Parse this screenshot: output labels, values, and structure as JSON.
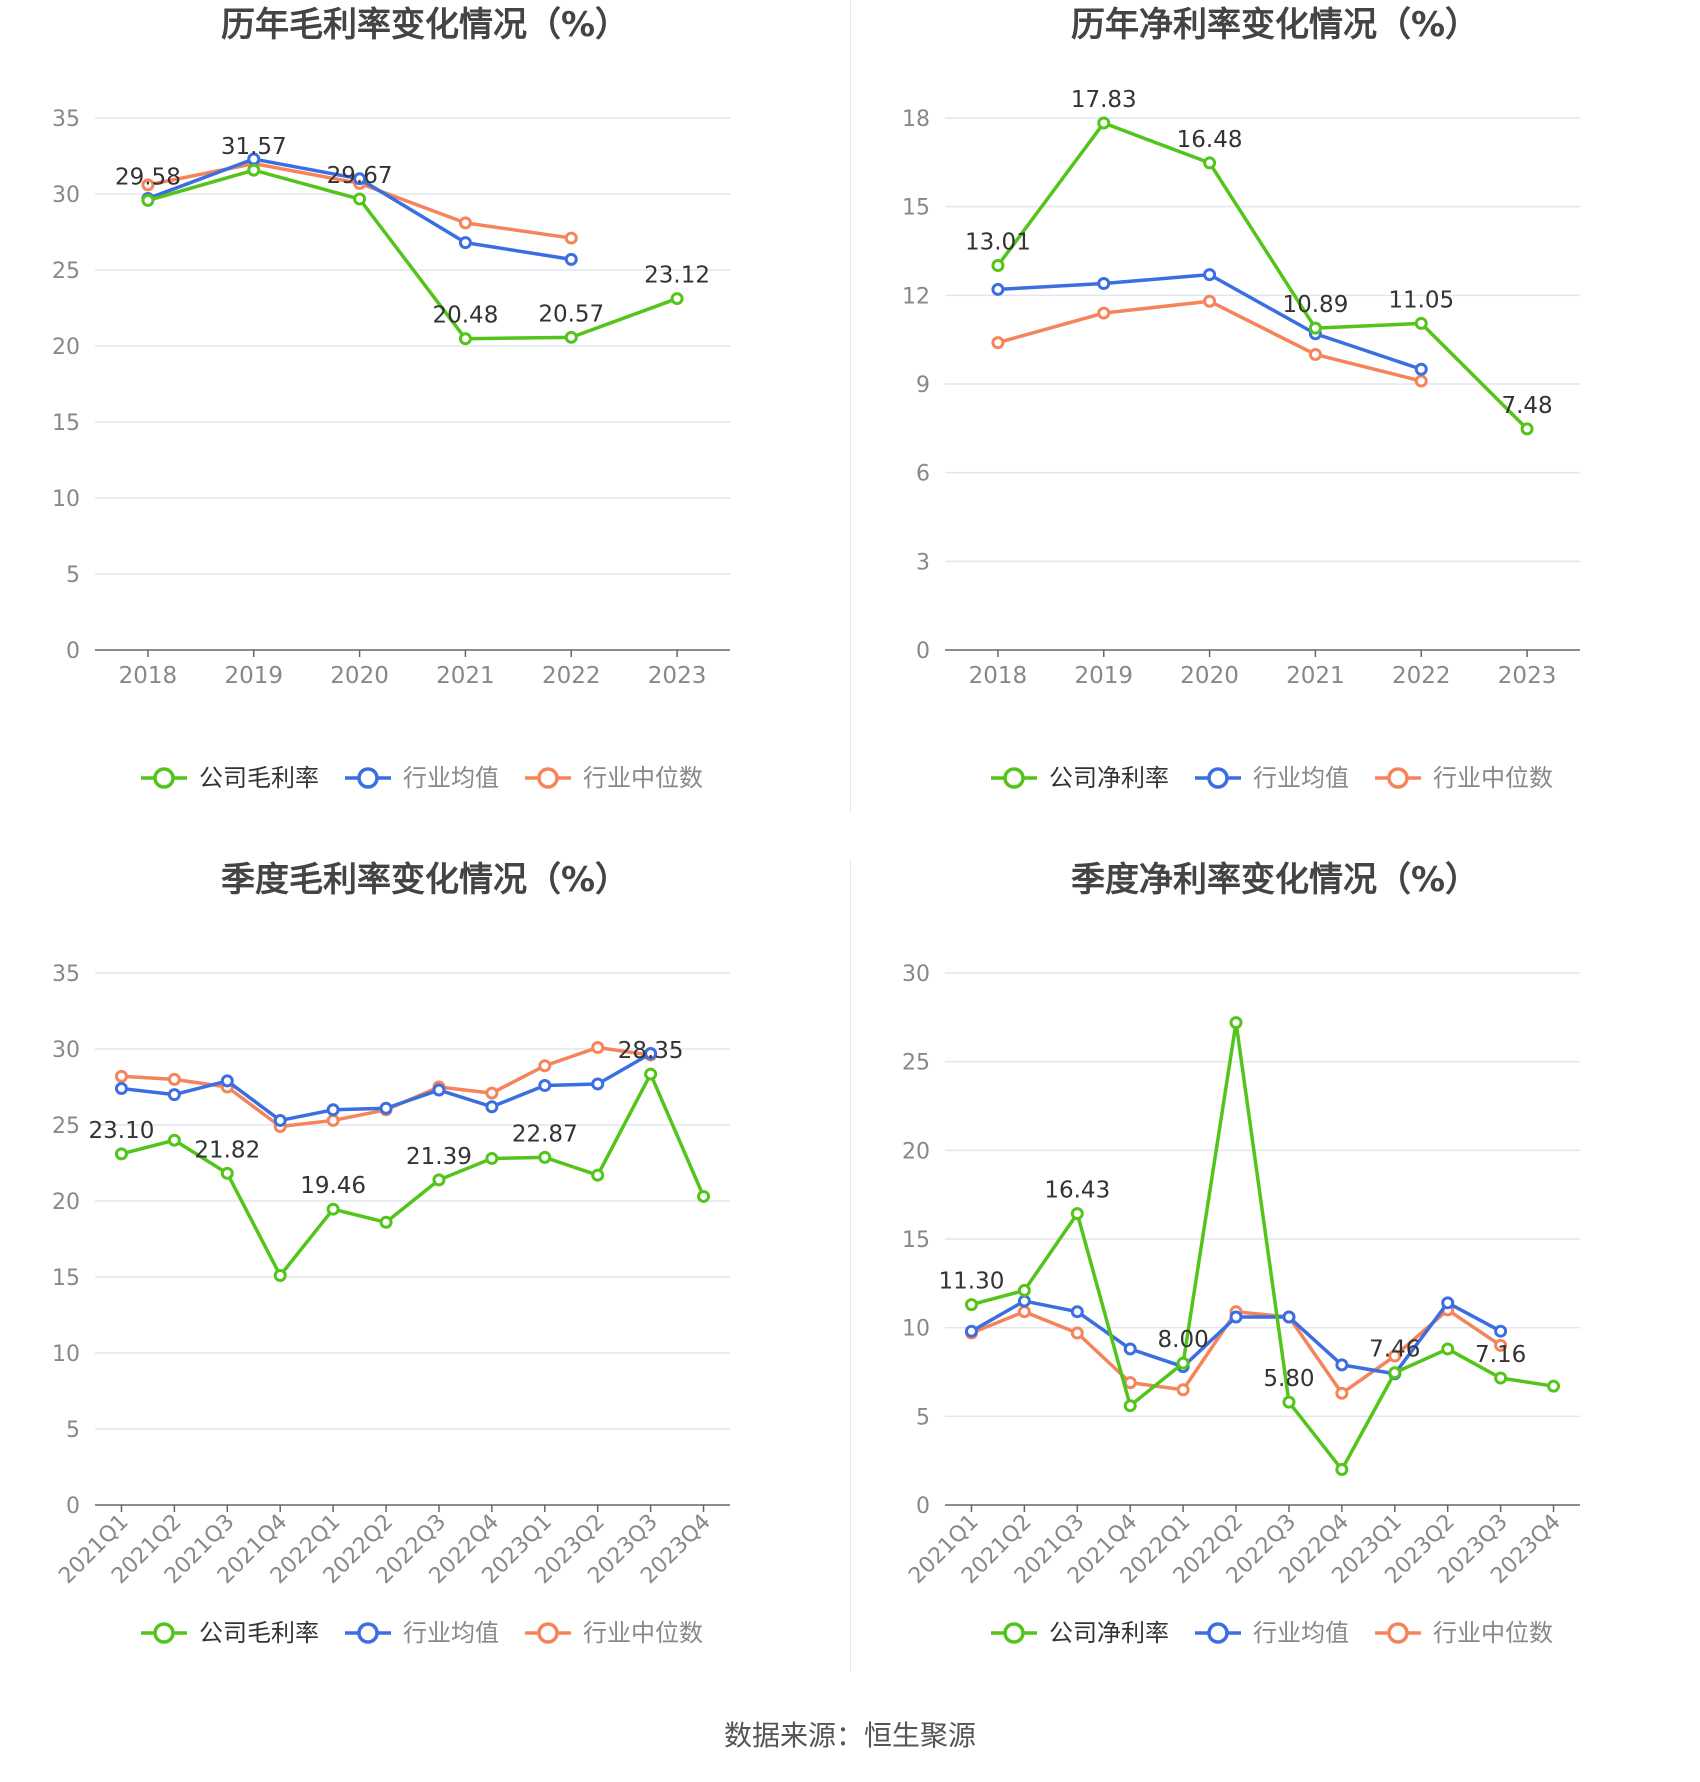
{
  "source": "数据来源：恒生聚源",
  "colors": {
    "company": "#52c41a",
    "avg": "#3b6ee0",
    "median": "#f5845a",
    "grid": "#e3e6f0",
    "axis": "#666666",
    "tick": "#888888",
    "title": "#444444"
  },
  "chart_data": [
    {
      "type": "line",
      "title": "历年毛利率变化情况（%）",
      "categories": [
        "2018",
        "2019",
        "2020",
        "2021",
        "2022",
        "2023"
      ],
      "ylim": [
        0,
        35
      ],
      "yticks": [
        0,
        5,
        10,
        15,
        20,
        25,
        30,
        35
      ],
      "grid": true,
      "legend_position": "bottom",
      "series": [
        {
          "name": "公司毛利率",
          "role": "company",
          "values": [
            29.58,
            31.57,
            29.67,
            20.48,
            20.57,
            23.12
          ],
          "labels": [
            "29.58",
            "31.57",
            "29.67",
            "20.48",
            "20.57",
            "23.12"
          ]
        },
        {
          "name": "行业均值",
          "role": "avg",
          "values": [
            29.7,
            32.3,
            31.0,
            26.8,
            25.7,
            null
          ]
        },
        {
          "name": "行业中位数",
          "role": "median",
          "values": [
            30.6,
            32.0,
            30.7,
            28.1,
            27.1,
            null
          ]
        }
      ]
    },
    {
      "type": "line",
      "title": "历年净利率变化情况（%）",
      "categories": [
        "2018",
        "2019",
        "2020",
        "2021",
        "2022",
        "2023"
      ],
      "ylim": [
        0,
        18
      ],
      "yticks": [
        0,
        3,
        6,
        9,
        12,
        15,
        18
      ],
      "grid": true,
      "legend_position": "bottom",
      "series": [
        {
          "name": "公司净利率",
          "role": "company",
          "values": [
            13.01,
            17.83,
            16.48,
            10.89,
            11.05,
            7.48
          ],
          "labels": [
            "13.01",
            "17.83",
            "16.48",
            "10.89",
            "11.05",
            "7.48"
          ]
        },
        {
          "name": "行业均值",
          "role": "avg",
          "values": [
            12.2,
            12.4,
            12.7,
            10.7,
            9.5,
            null
          ]
        },
        {
          "name": "行业中位数",
          "role": "median",
          "values": [
            10.4,
            11.4,
            11.8,
            10.0,
            9.1,
            null
          ]
        }
      ]
    },
    {
      "type": "line",
      "title": "季度毛利率变化情况（%）",
      "categories": [
        "2021Q1",
        "2021Q2",
        "2021Q3",
        "2021Q4",
        "2022Q1",
        "2022Q2",
        "2022Q3",
        "2022Q4",
        "2023Q1",
        "2023Q2",
        "2023Q3",
        "2023Q4"
      ],
      "ylim": [
        0,
        35
      ],
      "yticks": [
        0,
        5,
        10,
        15,
        20,
        25,
        30,
        35
      ],
      "grid": true,
      "legend_position": "bottom",
      "series": [
        {
          "name": "公司毛利率",
          "role": "company",
          "values": [
            23.1,
            24.0,
            21.82,
            15.1,
            19.46,
            18.6,
            21.39,
            22.8,
            22.87,
            21.7,
            28.35,
            20.3
          ],
          "labels": [
            "23.10",
            "",
            "21.82",
            "",
            "19.46",
            "",
            "21.39",
            "",
            "22.87",
            "",
            "28.35",
            ""
          ]
        },
        {
          "name": "行业均值",
          "role": "avg",
          "values": [
            27.4,
            27.0,
            27.9,
            25.3,
            26.0,
            26.1,
            27.3,
            26.2,
            27.6,
            27.7,
            29.7,
            null
          ]
        },
        {
          "name": "行业中位数",
          "role": "median",
          "values": [
            28.2,
            28.0,
            27.5,
            24.9,
            25.3,
            26.0,
            27.5,
            27.1,
            28.9,
            30.1,
            29.6,
            null
          ]
        }
      ]
    },
    {
      "type": "line",
      "title": "季度净利率变化情况（%）",
      "categories": [
        "2021Q1",
        "2021Q2",
        "2021Q3",
        "2021Q4",
        "2022Q1",
        "2022Q2",
        "2022Q3",
        "2022Q4",
        "2023Q1",
        "2023Q2",
        "2023Q3",
        "2023Q4"
      ],
      "ylim": [
        0,
        30
      ],
      "yticks": [
        0,
        5,
        10,
        15,
        20,
        25,
        30
      ],
      "grid": true,
      "legend_position": "bottom",
      "series": [
        {
          "name": "公司净利率",
          "role": "company",
          "values": [
            11.3,
            12.1,
            16.43,
            5.6,
            8.0,
            27.2,
            5.8,
            2.0,
            7.46,
            8.8,
            7.16,
            6.7
          ],
          "labels": [
            "11.30",
            "",
            "16.43",
            "",
            "8.00",
            "",
            "5.80",
            "",
            "7.46",
            "",
            "7.16",
            ""
          ]
        },
        {
          "name": "行业均值",
          "role": "avg",
          "values": [
            9.8,
            11.5,
            10.9,
            8.8,
            7.8,
            10.6,
            10.6,
            7.9,
            7.4,
            11.4,
            9.8,
            null
          ]
        },
        {
          "name": "行业中位数",
          "role": "median",
          "values": [
            9.7,
            10.9,
            9.7,
            6.9,
            6.5,
            10.9,
            10.6,
            6.3,
            8.4,
            11.0,
            9.0,
            null
          ]
        }
      ]
    }
  ]
}
